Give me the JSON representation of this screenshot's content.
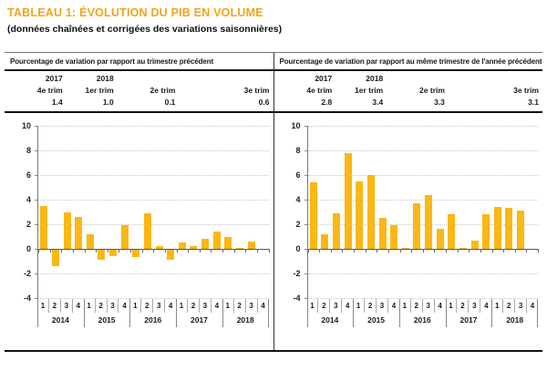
{
  "title": "TABLEAU 1: ÉVOLUTION DU PIB EN VOLUME",
  "subtitle": "(données chaînées et corrigées des variations saisonnières)",
  "colors": {
    "accent": "#F2A41B",
    "bar": "#FBB714"
  },
  "panels": [
    {
      "header": "Pourcentage de variation par rapport au trimestre précédent",
      "years": [
        "2017",
        "2018"
      ],
      "quarters": [
        "4e trim",
        "1er trim",
        "2e trim",
        "3e trim"
      ],
      "values": [
        "1.4",
        "1.0",
        "0.1",
        "0.6"
      ]
    },
    {
      "header": "Pourcentage de variation par rapport au même trimestre de l'année précédente",
      "years": [
        "2017",
        "2018"
      ],
      "quarters": [
        "4e trim",
        "1er trim",
        "2e trim",
        "3e trim"
      ],
      "values": [
        "2.8",
        "3.4",
        "3.3",
        "3.1"
      ]
    }
  ],
  "chart_data": [
    {
      "type": "bar",
      "title": "Pourcentage de variation par rapport au trimestre précédent",
      "years": [
        "2014",
        "2015",
        "2016",
        "2017",
        "2018"
      ],
      "quarter_labels": [
        "1",
        "2",
        "3",
        "4"
      ],
      "values": [
        3.5,
        -1.3,
        3.0,
        2.6,
        1.2,
        -0.8,
        -0.5,
        1.9,
        -0.6,
        2.9,
        0.2,
        -0.8,
        0.5,
        0.2,
        0.8,
        1.4,
        1.0,
        0.1,
        0.6,
        null
      ],
      "ylim": [
        -4,
        10
      ],
      "ytick_step": 2,
      "grid": "dotted horizontal",
      "legend": "none",
      "bar_color": "#FBB714"
    },
    {
      "type": "bar",
      "title": "Pourcentage de variation par rapport au même trimestre de l'année précédente",
      "years": [
        "2014",
        "2015",
        "2016",
        "2017",
        "2018"
      ],
      "quarter_labels": [
        "1",
        "2",
        "3",
        "4"
      ],
      "values": [
        5.4,
        1.2,
        2.9,
        7.8,
        5.5,
        6.0,
        2.5,
        1.9,
        0.0,
        3.7,
        4.4,
        1.6,
        2.8,
        0.1,
        0.7,
        2.8,
        3.4,
        3.3,
        3.1,
        null
      ],
      "ylim": [
        -4,
        10
      ],
      "ytick_step": 2,
      "grid": "dotted horizontal",
      "legend": "none",
      "bar_color": "#FBB714"
    }
  ]
}
